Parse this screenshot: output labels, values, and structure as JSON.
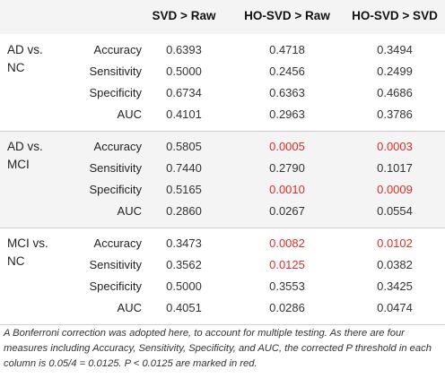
{
  "headers": [
    "SVD > Raw",
    "HO-SVD > Raw",
    "HO-SVD > SVD"
  ],
  "groups": [
    {
      "label": "AD vs.\nNC",
      "rows": [
        {
          "measure": "Accuracy",
          "values": [
            "0.6393",
            "0.4718",
            "0.3494"
          ],
          "significant": [
            false,
            false,
            false
          ]
        },
        {
          "measure": "Sensitivity",
          "values": [
            "0.5000",
            "0.2456",
            "0.2499"
          ],
          "significant": [
            false,
            false,
            false
          ]
        },
        {
          "measure": "Specificity",
          "values": [
            "0.6734",
            "0.6363",
            "0.4686"
          ],
          "significant": [
            false,
            false,
            false
          ]
        },
        {
          "measure": "AUC",
          "values": [
            "0.4101",
            "0.2963",
            "0.3786"
          ],
          "significant": [
            false,
            false,
            false
          ]
        }
      ]
    },
    {
      "label": "AD vs.\nMCI",
      "rows": [
        {
          "measure": "Accuracy",
          "values": [
            "0.5805",
            "0.0005",
            "0.0003"
          ],
          "significant": [
            false,
            true,
            true
          ]
        },
        {
          "measure": "Sensitivity",
          "values": [
            "0.7440",
            "0.2790",
            "0.1017"
          ],
          "significant": [
            false,
            false,
            false
          ]
        },
        {
          "measure": "Specificity",
          "values": [
            "0.5165",
            "0.0010",
            "0.0009"
          ],
          "significant": [
            false,
            true,
            true
          ]
        },
        {
          "measure": "AUC",
          "values": [
            "0.2860",
            "0.0267",
            "0.0554"
          ],
          "significant": [
            false,
            false,
            false
          ]
        }
      ]
    },
    {
      "label": "MCI vs.\nNC",
      "rows": [
        {
          "measure": "Accuracy",
          "values": [
            "0.3473",
            "0.0082",
            "0.0102"
          ],
          "significant": [
            false,
            true,
            true
          ]
        },
        {
          "measure": "Sensitivity",
          "values": [
            "0.3562",
            "0.0125",
            "0.0382"
          ],
          "significant": [
            false,
            true,
            false
          ]
        },
        {
          "measure": "Specificity",
          "values": [
            "0.5000",
            "0.3553",
            "0.3425"
          ],
          "significant": [
            false,
            false,
            false
          ]
        },
        {
          "measure": "AUC",
          "values": [
            "0.4051",
            "0.0286",
            "0.0474"
          ],
          "significant": [
            false,
            false,
            false
          ]
        }
      ]
    }
  ],
  "footnote": "A Bonferroni correction was adopted here, to account for multiple testing. As there are four measures including Accuracy, Sensitivity, Specificity, and AUC, the corrected P threshold in each column is 0.05/4 = 0.0125. P < 0.0125 are marked in red.",
  "colors": {
    "significant": "#e02b2b",
    "shade": "#f4f4f4"
  }
}
